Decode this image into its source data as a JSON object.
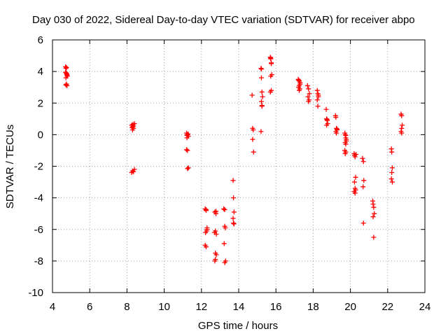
{
  "chart_data": {
    "type": "scatter",
    "title": "Day 030 of 2022, Sidereal Day-to-day VTEC variation (SDTVAR) for receiver abpo",
    "xlabel": "GPS time / hours",
    "ylabel": "SDTVAR / TECUs",
    "xlim": [
      4,
      24
    ],
    "ylim": [
      -10,
      6
    ],
    "xticks": [
      4,
      6,
      8,
      10,
      12,
      14,
      16,
      18,
      20,
      22,
      24
    ],
    "yticks": [
      -10,
      -8,
      -6,
      -4,
      -2,
      0,
      2,
      4,
      6
    ],
    "grid": true,
    "marker": "+",
    "series": [
      {
        "name": "SDTVAR",
        "color": "#ff0000",
        "x": [
          4.7,
          4.72,
          4.75,
          4.78,
          4.8,
          4.72,
          4.75,
          4.78,
          4.7,
          4.75,
          4.78,
          4.72,
          4.75,
          8.25,
          8.3,
          8.35,
          8.4,
          8.3,
          8.35,
          8.25,
          8.3,
          8.4,
          8.35,
          8.28,
          8.32,
          11.2,
          11.25,
          11.3,
          11.22,
          11.28,
          11.25,
          11.2,
          11.3,
          11.25,
          11.22,
          12.2,
          12.25,
          12.3,
          12.22,
          12.28,
          12.25,
          12.2,
          12.3,
          12.25,
          12.72,
          12.78,
          12.75,
          12.8,
          12.7,
          12.75,
          12.8,
          12.75,
          12.72,
          12.78,
          13.2,
          13.25,
          13.28,
          13.22,
          13.25,
          13.3,
          13.25,
          13.7,
          13.72,
          13.75,
          13.7,
          13.72,
          13.75,
          14.72,
          14.75,
          14.78,
          14.75,
          14.8,
          15.2,
          15.22,
          15.25,
          15.28,
          15.22,
          15.25,
          15.2,
          15.25,
          15.22,
          15.7,
          15.72,
          15.75,
          15.78,
          15.72,
          15.75,
          15.7,
          15.75,
          15.72,
          17.2,
          17.25,
          17.3,
          17.22,
          17.28,
          17.25,
          17.3,
          17.22,
          17.25,
          17.7,
          17.75,
          17.8,
          17.72,
          17.78,
          17.75,
          18.22,
          18.25,
          18.28,
          18.22,
          18.25,
          18.28,
          18.7,
          18.72,
          18.75,
          18.78,
          18.72,
          18.75,
          19.2,
          19.22,
          19.25,
          19.28,
          19.22,
          19.25,
          19.28,
          19.7,
          19.72,
          19.75,
          19.78,
          19.72,
          19.75,
          19.7,
          19.75,
          19.72,
          19.78,
          19.75,
          20.2,
          20.22,
          20.25,
          20.28,
          20.22,
          20.25,
          20.28,
          20.25,
          20.2,
          20.3,
          20.65,
          20.7,
          20.72,
          20.68,
          20.7,
          21.2,
          21.22,
          21.25,
          21.28,
          21.22,
          21.25,
          22.2,
          22.22,
          22.25,
          22.22,
          22.2,
          22.25,
          22.72,
          22.75,
          22.78,
          22.75,
          22.72,
          22.75
        ],
        "y": [
          4.3,
          4.2,
          3.9,
          3.8,
          3.7,
          3.6,
          3.2,
          3.1,
          3.95,
          4.25,
          3.75,
          3.15,
          3.85,
          0.6,
          0.5,
          0.4,
          0.7,
          0.3,
          0.55,
          -2.4,
          -2.3,
          -2.2,
          -2.35,
          0.45,
          0.65,
          0.1,
          0.0,
          -0.1,
          -0.2,
          0.05,
          -1.0,
          -0.95,
          -2.1,
          -2.15,
          -0.05,
          -4.7,
          -4.8,
          -6.0,
          -6.2,
          -6.1,
          -7.1,
          -7.0,
          -5.9,
          -4.75,
          -4.9,
          -5.0,
          -6.1,
          -6.3,
          -6.2,
          -7.5,
          -7.6,
          -7.9,
          -8.0,
          -4.85,
          -4.7,
          -5.8,
          -5.9,
          -6.9,
          -8.1,
          -8.0,
          -4.75,
          -2.9,
          -4.0,
          -4.9,
          -5.3,
          -5.6,
          -5.65,
          2.5,
          0.4,
          0.3,
          -0.3,
          -1.1,
          4.2,
          3.6,
          2.7,
          2.4,
          2.1,
          1.8,
          0.2,
          1.85,
          4.15,
          4.9,
          4.8,
          4.5,
          3.8,
          3.7,
          2.8,
          2.7,
          4.55,
          4.85,
          3.5,
          3.4,
          3.2,
          3.0,
          2.9,
          2.8,
          3.3,
          3.45,
          3.1,
          3.1,
          2.9,
          2.6,
          2.4,
          2.2,
          2.1,
          2.8,
          2.6,
          2.4,
          2.2,
          1.8,
          2.5,
          1.6,
          1.0,
          0.9,
          0.7,
          0.6,
          0.95,
          1.2,
          1.1,
          0.4,
          0.3,
          0.2,
          0.1,
          0.35,
          0.1,
          0.0,
          -0.2,
          -0.3,
          -0.5,
          -0.6,
          -1.0,
          -1.1,
          -1.2,
          -0.4,
          -0.05,
          -1.2,
          -1.3,
          -1.4,
          -2.7,
          -3.0,
          -3.4,
          -3.5,
          -3.7,
          -3.6,
          -1.25,
          -1.5,
          -1.7,
          -2.9,
          -3.3,
          -5.6,
          -4.2,
          -4.4,
          -4.6,
          -5.0,
          -5.2,
          -6.5,
          -0.9,
          -1.1,
          -2.1,
          -2.4,
          -2.8,
          -3.0,
          1.3,
          1.2,
          0.6,
          0.4,
          0.2,
          0.1
        ]
      }
    ]
  }
}
